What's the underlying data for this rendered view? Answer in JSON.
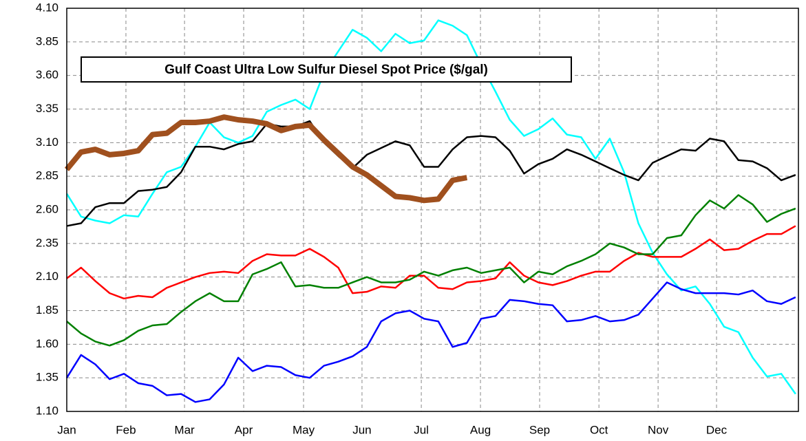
{
  "chart_data": {
    "type": "line",
    "title": "Gulf Coast Ultra Low Sulfur Diesel Spot Price ($/gal)",
    "x": [
      0,
      1,
      2,
      3,
      4,
      5,
      6,
      7,
      8,
      9,
      10,
      11,
      12,
      13,
      14,
      15,
      16,
      17,
      18,
      19,
      20,
      21,
      22,
      23,
      24,
      25,
      26,
      27,
      28,
      29,
      30,
      31,
      32,
      33,
      34,
      35,
      36,
      37,
      38,
      39,
      40,
      41,
      42,
      43,
      44,
      45,
      46,
      47,
      48,
      49,
      50,
      51
    ],
    "xlim": [
      0,
      51.2
    ],
    "xticks": [
      {
        "value": 0,
        "label": "Jan"
      },
      {
        "value": 4.14,
        "label": "Feb"
      },
      {
        "value": 8.24,
        "label": "Mar"
      },
      {
        "value": 12.38,
        "label": "Apr"
      },
      {
        "value": 16.57,
        "label": "May"
      },
      {
        "value": 20.66,
        "label": "Jun"
      },
      {
        "value": 24.81,
        "label": "Jul"
      },
      {
        "value": 28.95,
        "label": "Aug"
      },
      {
        "value": 33.09,
        "label": "Sep"
      },
      {
        "value": 37.24,
        "label": "Oct"
      },
      {
        "value": 41.38,
        "label": "Nov"
      },
      {
        "value": 45.47,
        "label": "Dec"
      }
    ],
    "ylim": [
      1.1,
      4.1
    ],
    "yticks": [
      {
        "value": 1.1,
        "label": "1.10"
      },
      1.35,
      {
        "value": 1.6,
        "label": "1.60"
      },
      1.85,
      {
        "value": 2.1,
        "label": "2.10"
      },
      2.35,
      {
        "value": 2.6,
        "label": "2.60"
      },
      2.85,
      {
        "value": 3.1,
        "label": "3.10"
      },
      3.35,
      {
        "value": 3.6,
        "label": "3.60"
      },
      3.85,
      {
        "value": 4.1,
        "label": "4.10"
      }
    ],
    "grid": true,
    "series": [
      {
        "color": "#00ffff",
        "line_width": 2.5,
        "values": [
          2.72,
          2.55,
          2.52,
          2.5,
          2.56,
          2.55,
          2.72,
          2.88,
          2.92,
          3.07,
          3.25,
          3.14,
          3.1,
          3.15,
          3.33,
          3.38,
          3.42,
          3.35,
          3.62,
          3.78,
          3.94,
          3.88,
          3.78,
          3.91,
          3.84,
          3.86,
          4.01,
          3.97,
          3.9,
          3.68,
          3.48,
          3.27,
          3.15,
          3.2,
          3.28,
          3.16,
          3.14,
          2.98,
          3.13,
          2.88,
          2.5,
          2.28,
          2.12,
          2.0,
          2.03,
          1.9,
          1.73,
          1.69,
          1.5,
          1.36,
          1.38,
          1.23
        ]
      },
      {
        "color": "#000000",
        "line_width": 2.5,
        "values": [
          2.48,
          2.5,
          2.62,
          2.65,
          2.65,
          2.74,
          2.75,
          2.77,
          2.88,
          3.07,
          3.07,
          3.05,
          3.09,
          3.11,
          3.24,
          3.22,
          3.22,
          3.26,
          3.1,
          3.0,
          2.91,
          3.01,
          3.06,
          3.11,
          3.08,
          2.92,
          2.92,
          3.05,
          3.14,
          3.15,
          3.14,
          3.04,
          2.87,
          2.94,
          2.98,
          3.05,
          3.01,
          2.96,
          2.91,
          2.86,
          2.82,
          2.95,
          3.0,
          3.05,
          3.04,
          3.13,
          3.11,
          2.97,
          2.96,
          2.91,
          2.82,
          2.86
        ]
      },
      {
        "color": "#ff0000",
        "line_width": 2.5,
        "values": [
          2.09,
          2.17,
          2.07,
          1.98,
          1.94,
          1.96,
          1.95,
          2.02,
          2.06,
          2.1,
          2.13,
          2.14,
          2.13,
          2.22,
          2.27,
          2.26,
          2.26,
          2.31,
          2.25,
          2.17,
          1.98,
          1.99,
          2.03,
          2.02,
          2.11,
          2.11,
          2.02,
          2.01,
          2.06,
          2.07,
          2.09,
          2.21,
          2.11,
          2.06,
          2.04,
          2.07,
          2.11,
          2.14,
          2.14,
          2.22,
          2.28,
          2.25,
          2.25,
          2.25,
          2.31,
          2.38,
          2.3,
          2.31,
          2.37,
          2.42,
          2.42,
          2.48
        ]
      },
      {
        "color": "#008000",
        "line_width": 2.5,
        "values": [
          1.77,
          1.68,
          1.62,
          1.59,
          1.63,
          1.7,
          1.74,
          1.75,
          1.84,
          1.92,
          1.98,
          1.92,
          1.92,
          2.12,
          2.16,
          2.21,
          2.03,
          2.04,
          2.02,
          2.02,
          2.06,
          2.1,
          2.06,
          2.06,
          2.08,
          2.14,
          2.11,
          2.15,
          2.17,
          2.13,
          2.15,
          2.17,
          2.06,
          2.14,
          2.12,
          2.18,
          2.22,
          2.27,
          2.35,
          2.32,
          2.27,
          2.27,
          2.39,
          2.41,
          2.56,
          2.67,
          2.61,
          2.71,
          2.64,
          2.51,
          2.57,
          2.61
        ]
      },
      {
        "color": "#0000ff",
        "line_width": 2.5,
        "values": [
          1.35,
          1.52,
          1.45,
          1.34,
          1.38,
          1.31,
          1.29,
          1.22,
          1.23,
          1.17,
          1.19,
          1.3,
          1.5,
          1.4,
          1.44,
          1.43,
          1.37,
          1.35,
          1.44,
          1.47,
          1.51,
          1.58,
          1.77,
          1.83,
          1.85,
          1.79,
          1.77,
          1.58,
          1.61,
          1.79,
          1.81,
          1.93,
          1.92,
          1.9,
          1.89,
          1.77,
          1.78,
          1.81,
          1.77,
          1.78,
          1.82,
          1.94,
          2.06,
          2.01,
          1.98,
          1.98,
          1.98,
          1.97,
          2.0,
          1.92,
          1.9,
          1.95
        ]
      },
      {
        "color": "#a0501e",
        "line_width": 8,
        "values": [
          2.9,
          3.03,
          3.05,
          3.01,
          3.02,
          3.04,
          3.16,
          3.17,
          3.25,
          3.25,
          3.26,
          3.29,
          3.27,
          3.26,
          3.24,
          3.19,
          3.22,
          3.23,
          3.12,
          3.02,
          2.92,
          2.86,
          2.78,
          2.7,
          2.69,
          2.67,
          2.68,
          2.82,
          2.84,
          null,
          null,
          null,
          null,
          null,
          null,
          null,
          null,
          null,
          null,
          null,
          null,
          null,
          null,
          null,
          null,
          null,
          null,
          null,
          null,
          null,
          null,
          null
        ]
      }
    ]
  }
}
